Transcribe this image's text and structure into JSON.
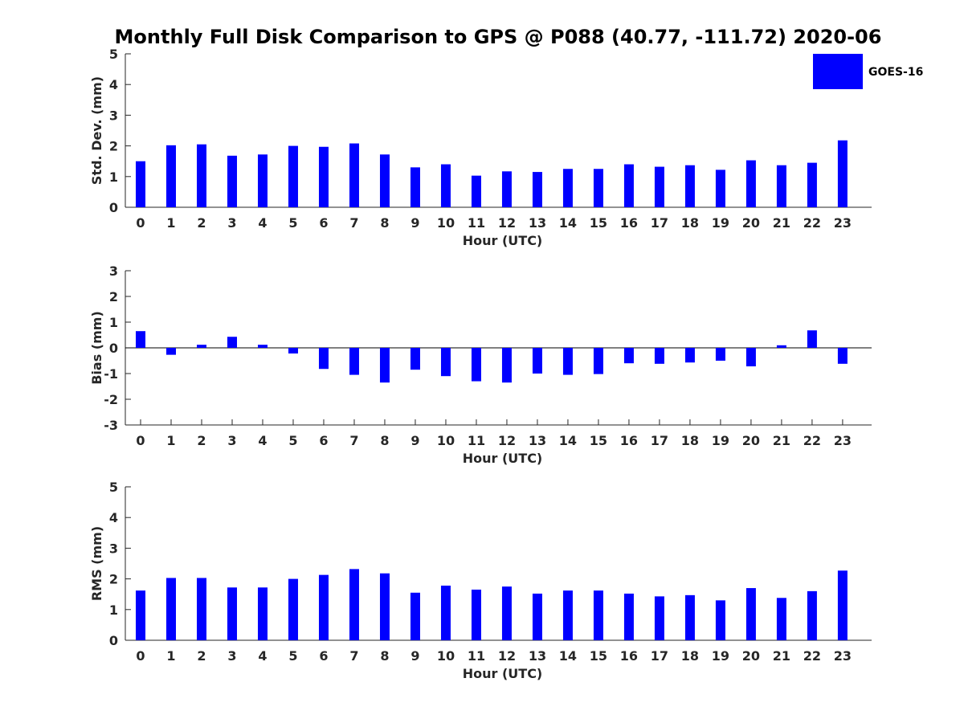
{
  "title": "Monthly Full Disk Comparison to GPS @ P088 (40.77, -111.72) 2020-06",
  "legend": {
    "label": "GOES-16",
    "color": "#0000ff",
    "placement": "top-right"
  },
  "chart_data": [
    {
      "type": "bar",
      "xlabel": "Hour (UTC)",
      "ylabel": "Std. Dev. (mm)",
      "ylim": [
        0,
        5
      ],
      "yticks": [
        "0",
        "1",
        "2",
        "3",
        "4",
        "5"
      ],
      "categories": [
        "0",
        "1",
        "2",
        "3",
        "4",
        "5",
        "6",
        "7",
        "8",
        "9",
        "10",
        "11",
        "12",
        "13",
        "14",
        "15",
        "16",
        "17",
        "18",
        "19",
        "20",
        "21",
        "22",
        "23"
      ],
      "series": [
        {
          "name": "GOES-16",
          "color": "#0000ff",
          "values": [
            1.5,
            2.02,
            2.05,
            1.68,
            1.72,
            2.0,
            1.97,
            2.08,
            1.72,
            1.3,
            1.4,
            1.03,
            1.17,
            1.15,
            1.25,
            1.25,
            1.4,
            1.32,
            1.37,
            1.22,
            1.53,
            1.37,
            1.45,
            2.18
          ]
        }
      ],
      "grid": false
    },
    {
      "type": "bar",
      "xlabel": "Hour (UTC)",
      "ylabel": "Bias (mm)",
      "ylim": [
        -3,
        3
      ],
      "yticks": [
        "-3",
        "-2",
        "-1",
        "0",
        "1",
        "2",
        "3"
      ],
      "categories": [
        "0",
        "1",
        "2",
        "3",
        "4",
        "5",
        "6",
        "7",
        "8",
        "9",
        "10",
        "11",
        "12",
        "13",
        "14",
        "15",
        "16",
        "17",
        "18",
        "19",
        "20",
        "21",
        "22",
        "23"
      ],
      "series": [
        {
          "name": "GOES-16",
          "color": "#0000ff",
          "values": [
            0.65,
            -0.27,
            0.12,
            0.43,
            0.12,
            -0.22,
            -0.82,
            -1.05,
            -1.35,
            -0.85,
            -1.1,
            -1.3,
            -1.35,
            -1.0,
            -1.05,
            -1.02,
            -0.6,
            -0.62,
            -0.57,
            -0.5,
            -0.72,
            0.1,
            0.68,
            -0.62
          ]
        }
      ],
      "grid": false
    },
    {
      "type": "bar",
      "xlabel": "Hour (UTC)",
      "ylabel": "RMS (mm)",
      "ylim": [
        0,
        5
      ],
      "yticks": [
        "0",
        "1",
        "2",
        "3",
        "4",
        "5"
      ],
      "categories": [
        "0",
        "1",
        "2",
        "3",
        "4",
        "5",
        "6",
        "7",
        "8",
        "9",
        "10",
        "11",
        "12",
        "13",
        "14",
        "15",
        "16",
        "17",
        "18",
        "19",
        "20",
        "21",
        "22",
        "23"
      ],
      "series": [
        {
          "name": "GOES-16",
          "color": "#0000ff",
          "values": [
            1.62,
            2.03,
            2.03,
            1.72,
            1.72,
            2.0,
            2.13,
            2.32,
            2.18,
            1.55,
            1.78,
            1.65,
            1.75,
            1.52,
            1.62,
            1.62,
            1.52,
            1.43,
            1.47,
            1.3,
            1.7,
            1.38,
            1.6,
            2.27
          ]
        }
      ],
      "grid": false
    }
  ]
}
